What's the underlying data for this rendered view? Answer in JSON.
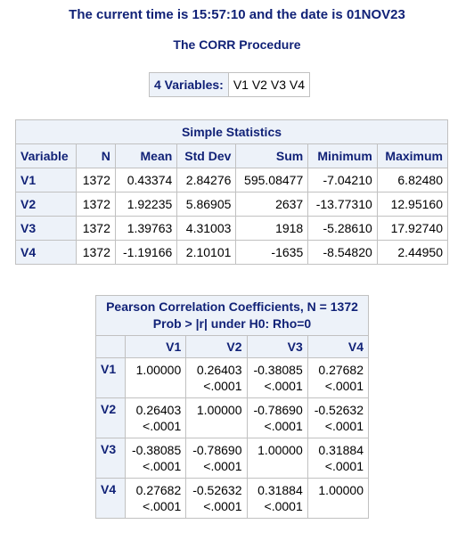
{
  "header": {
    "time_line": "The current time is 15:57:10 and the date is 01NOV23",
    "procedure": "The CORR Procedure"
  },
  "variables": {
    "label": "4 Variables:",
    "list": "V1 V2 V3 V4"
  },
  "simple_stats": {
    "caption": "Simple Statistics",
    "columns": [
      "Variable",
      "N",
      "Mean",
      "Std Dev",
      "Sum",
      "Minimum",
      "Maximum"
    ],
    "rows": [
      [
        "V1",
        "1372",
        "0.43374",
        "2.84276",
        "595.08477",
        "-7.04210",
        "6.82480"
      ],
      [
        "V2",
        "1372",
        "1.92235",
        "5.86905",
        "2637",
        "-13.77310",
        "12.95160"
      ],
      [
        "V3",
        "1372",
        "1.39763",
        "4.31003",
        "1918",
        "-5.28610",
        "17.92740"
      ],
      [
        "V4",
        "1372",
        "-1.19166",
        "2.10101",
        "-1635",
        "-8.54820",
        "2.44950"
      ]
    ]
  },
  "pearson": {
    "caption_line1": "Pearson Correlation Coefficients, N = 1372",
    "caption_line2": "Prob > |r| under H0: Rho=0",
    "columns": [
      "V1",
      "V2",
      "V3",
      "V4"
    ],
    "rows": [
      {
        "name": "V1",
        "cells": [
          [
            "1.00000",
            ""
          ],
          [
            "0.26403",
            "<.0001"
          ],
          [
            "-0.38085",
            "<.0001"
          ],
          [
            "0.27682",
            "<.0001"
          ]
        ]
      },
      {
        "name": "V2",
        "cells": [
          [
            "0.26403",
            "<.0001"
          ],
          [
            "1.00000",
            ""
          ],
          [
            "-0.78690",
            "<.0001"
          ],
          [
            "-0.52632",
            "<.0001"
          ]
        ]
      },
      {
        "name": "V3",
        "cells": [
          [
            "-0.38085",
            "<.0001"
          ],
          [
            "-0.78690",
            "<.0001"
          ],
          [
            "1.00000",
            ""
          ],
          [
            "0.31884",
            "<.0001"
          ]
        ]
      },
      {
        "name": "V4",
        "cells": [
          [
            "0.27682",
            "<.0001"
          ],
          [
            "-0.52632",
            "<.0001"
          ],
          [
            "0.31884",
            "<.0001"
          ],
          [
            "1.00000",
            ""
          ]
        ]
      }
    ]
  }
}
